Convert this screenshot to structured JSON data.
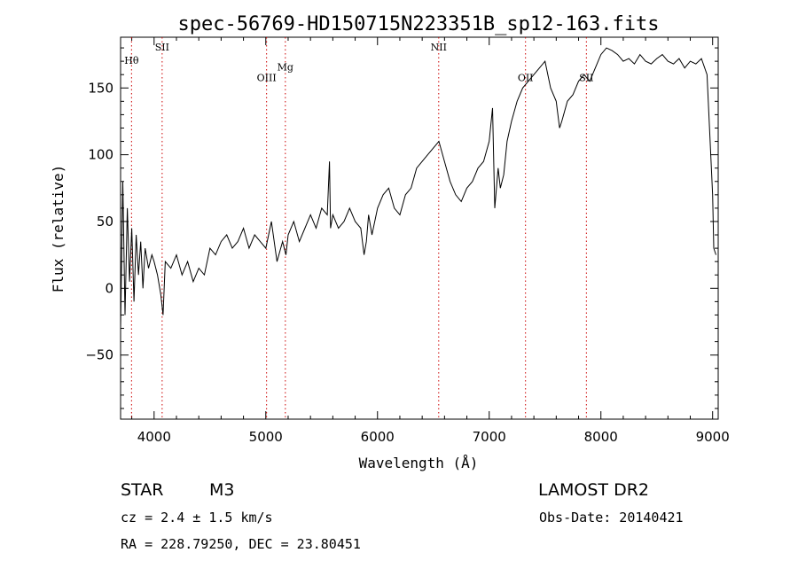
{
  "chart_data": {
    "type": "line",
    "title": "spec-56769-HD150715N223351B_sp12-163.fits",
    "xlabel": "Wavelength (Å)",
    "ylabel": "Flux (relative)",
    "xlim": [
      3700,
      9050
    ],
    "ylim": [
      -98,
      188
    ],
    "xticks": [
      4000,
      5000,
      6000,
      7000,
      8000,
      9000
    ],
    "yticks": [
      -50,
      0,
      50,
      100,
      150
    ],
    "grid": false,
    "line_color": "#000000",
    "marker_color": "#cc0000",
    "spectral_lines": [
      {
        "name": "Hθ",
        "x": 3798,
        "label_y": 168
      },
      {
        "name": "SII",
        "x": 4072,
        "label_y": 178
      },
      {
        "name": "OIII",
        "x": 5007,
        "label_y": 155
      },
      {
        "name": "Mg",
        "x": 5175,
        "label_y": 163
      },
      {
        "name": "NII",
        "x": 6548,
        "label_y": 178
      },
      {
        "name": "OII",
        "x": 7325,
        "label_y": 155
      },
      {
        "name": "SII",
        "x": 7870,
        "label_y": 155
      }
    ],
    "series": [
      {
        "x": [
          3700,
          3720,
          3740,
          3760,
          3780,
          3800,
          3820,
          3840,
          3860,
          3880,
          3900,
          3920,
          3950,
          3980,
          4000,
          4030,
          4060,
          4080,
          4100,
          4150,
          4200,
          4250,
          4300,
          4350,
          4400,
          4450,
          4500,
          4550,
          4600,
          4650,
          4700,
          4750,
          4800,
          4850,
          4900,
          4950,
          5000,
          5050,
          5100,
          5150,
          5180,
          5200,
          5250,
          5300,
          5350,
          5400,
          5450,
          5500,
          5550,
          5570,
          5580,
          5600,
          5650,
          5700,
          5750,
          5800,
          5850,
          5880,
          5900,
          5920,
          5950,
          6000,
          6050,
          6100,
          6150,
          6200,
          6250,
          6300,
          6350,
          6400,
          6450,
          6500,
          6550,
          6600,
          6650,
          6700,
          6750,
          6800,
          6850,
          6900,
          6950,
          7000,
          7030,
          7050,
          7080,
          7100,
          7130,
          7160,
          7200,
          7250,
          7300,
          7350,
          7400,
          7450,
          7500,
          7550,
          7600,
          7630,
          7650,
          7700,
          7750,
          7800,
          7850,
          7900,
          7950,
          8000,
          8050,
          8100,
          8150,
          8200,
          8250,
          8300,
          8350,
          8400,
          8450,
          8500,
          8550,
          8600,
          8650,
          8700,
          8750,
          8800,
          8850,
          8900,
          8950,
          9000,
          9010,
          9030
        ],
        "y": [
          -30,
          80,
          -20,
          60,
          5,
          45,
          -10,
          40,
          10,
          35,
          0,
          30,
          15,
          25,
          20,
          10,
          -5,
          -20,
          20,
          15,
          25,
          10,
          20,
          5,
          15,
          10,
          30,
          25,
          35,
          40,
          30,
          35,
          45,
          30,
          40,
          35,
          30,
          50,
          20,
          35,
          25,
          40,
          50,
          35,
          45,
          55,
          45,
          60,
          55,
          95,
          45,
          55,
          45,
          50,
          60,
          50,
          45,
          25,
          35,
          55,
          40,
          60,
          70,
          75,
          60,
          55,
          70,
          75,
          90,
          95,
          100,
          105,
          110,
          95,
          80,
          70,
          65,
          75,
          80,
          90,
          95,
          110,
          135,
          60,
          90,
          75,
          85,
          110,
          125,
          140,
          150,
          155,
          160,
          165,
          170,
          150,
          140,
          120,
          125,
          140,
          145,
          155,
          160,
          155,
          165,
          175,
          180,
          178,
          175,
          170,
          172,
          168,
          175,
          170,
          168,
          172,
          175,
          170,
          168,
          172,
          165,
          170,
          168,
          172,
          160,
          70,
          30,
          25
        ]
      }
    ]
  },
  "info": {
    "class": "STAR",
    "subclass": "M3",
    "survey": "LAMOST DR2",
    "cz": "cz = 2.4 ± 1.5 km/s",
    "obs_date": "Obs-Date: 20140421",
    "radec": "RA = 228.79250, DEC =  23.80451"
  }
}
